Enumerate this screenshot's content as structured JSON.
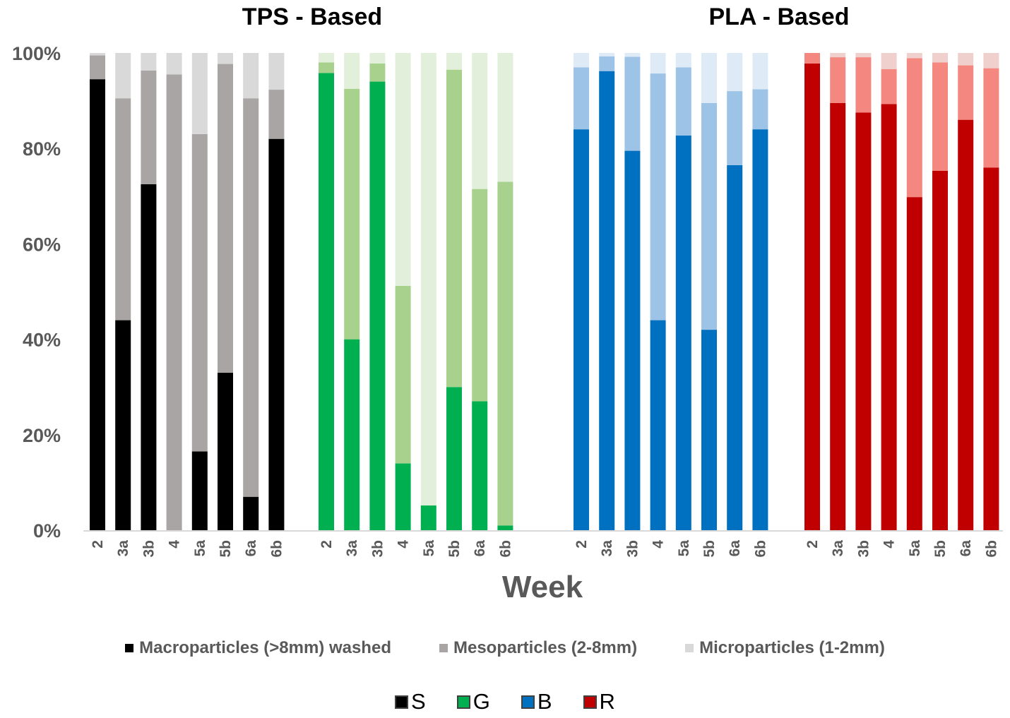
{
  "chart_data": {
    "type": "bar",
    "stacked": true,
    "titles": [
      "TPS - Based",
      "PLA - Based"
    ],
    "xlabel": "Week",
    "ylim": [
      0,
      100
    ],
    "yticks": [
      "0%",
      "20%",
      "40%",
      "60%",
      "80%",
      "100%"
    ],
    "categories": [
      "2",
      "3a",
      "3b",
      "4",
      "5a",
      "5b",
      "6a",
      "6b"
    ],
    "size_legend": [
      {
        "key": "macro",
        "label": "Macroparticles (>8mm) washed",
        "color": "#000000"
      },
      {
        "key": "meso",
        "label": "Mesoparticles (2-8mm)",
        "color": "#aaa5a5"
      },
      {
        "key": "micro",
        "label": "Microparticles (1-2mm)",
        "color": "#d9d9d9"
      }
    ],
    "groups": [
      {
        "name": "S",
        "swatch": "#000000",
        "colors": {
          "macro": "#000000",
          "meso": "#aaa5a5",
          "micro": "#d9d9d9"
        },
        "macro": [
          94.5,
          44,
          72.5,
          0,
          16.5,
          33,
          7,
          82
        ],
        "meso": [
          5,
          46.5,
          23.8,
          95.5,
          66.5,
          64.7,
          83.5,
          10.3
        ],
        "micro": [
          0.5,
          9.5,
          3.7,
          4.5,
          17,
          2.3,
          9.5,
          7.7
        ]
      },
      {
        "name": "G",
        "swatch": "#00b050",
        "colors": {
          "macro": "#00b050",
          "meso": "#a9d18e",
          "micro": "#e2efda"
        },
        "macro": [
          95.8,
          40,
          94,
          14,
          5.2,
          30,
          27,
          1
        ],
        "meso": [
          2.2,
          52.5,
          3.8,
          37.2,
          0,
          66.5,
          44.5,
          72
        ],
        "micro": [
          2,
          7.5,
          2.2,
          48.8,
          94.8,
          3.5,
          28.5,
          27
        ]
      },
      {
        "name": "B",
        "swatch": "#0070c0",
        "colors": {
          "macro": "#0070c0",
          "meso": "#9dc3e6",
          "micro": "#deebf7"
        },
        "macro": [
          84,
          96.2,
          79.5,
          44,
          82.7,
          42,
          76.5,
          84
        ],
        "meso": [
          13,
          3.1,
          19.7,
          51.7,
          14.3,
          47.5,
          15.5,
          8.4
        ],
        "micro": [
          3,
          0.7,
          0.8,
          4.3,
          3,
          10.5,
          8,
          7.6
        ]
      },
      {
        "name": "R",
        "swatch": "#c00000",
        "colors": {
          "macro": "#c00000",
          "meso": "#f4877f",
          "micro": "#f0d0cd"
        },
        "macro": [
          97.8,
          89.5,
          87.5,
          89.3,
          69.8,
          75.3,
          86,
          76
        ],
        "meso": [
          2.2,
          9.6,
          11.6,
          7.3,
          29.1,
          22.7,
          11.4,
          20.8
        ],
        "micro": [
          0,
          0.9,
          0.9,
          3.4,
          1.1,
          2,
          2.6,
          3.2
        ]
      }
    ]
  }
}
